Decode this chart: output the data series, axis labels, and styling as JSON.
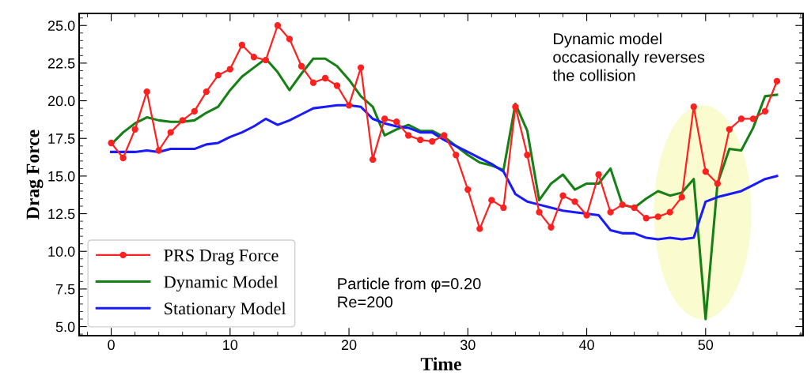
{
  "chart_data": {
    "type": "line",
    "xlabel": "Time",
    "ylabel": "Drag Force",
    "x": [
      0,
      1,
      2,
      3,
      4,
      5,
      6,
      7,
      8,
      9,
      10,
      11,
      12,
      13,
      14,
      15,
      16,
      17,
      18,
      19,
      20,
      21,
      22,
      23,
      24,
      25,
      26,
      27,
      28,
      29,
      30,
      31,
      32,
      33,
      34,
      35,
      36,
      37,
      38,
      39,
      40,
      41,
      42,
      43,
      44,
      45,
      46,
      47,
      48,
      49,
      50,
      51,
      52,
      53,
      54,
      55,
      56
    ],
    "series": [
      {
        "name": "PRS Drag Force",
        "color": "#ff2020",
        "marker": "circle",
        "values": [
          17.2,
          16.2,
          18.1,
          20.6,
          16.7,
          17.9,
          18.7,
          19.3,
          20.6,
          21.7,
          22.1,
          23.7,
          22.9,
          22.7,
          25.0,
          24.1,
          22.3,
          21.2,
          21.5,
          21.0,
          19.7,
          22.2,
          16.1,
          18.8,
          18.6,
          17.7,
          17.4,
          17.3,
          17.7,
          16.4,
          14.1,
          11.5,
          13.4,
          12.9,
          19.6,
          16.4,
          12.6,
          11.6,
          13.7,
          13.3,
          12.4,
          15.1,
          12.6,
          13.1,
          12.9,
          12.2,
          12.3,
          12.6,
          13.6,
          19.6,
          15.3,
          14.5,
          18.1,
          18.8,
          18.8,
          19.3,
          21.3
        ]
      },
      {
        "name": "Dynamic Model",
        "color": "#168016",
        "marker": "none",
        "values": [
          17.1,
          17.9,
          18.5,
          18.9,
          18.7,
          18.6,
          18.6,
          18.7,
          19.2,
          19.6,
          20.7,
          21.6,
          22.2,
          22.8,
          21.9,
          20.7,
          21.8,
          22.8,
          22.8,
          22.3,
          21.4,
          20.3,
          19.6,
          17.7,
          18.1,
          18.4,
          18.0,
          18.0,
          17.6,
          17.0,
          16.4,
          15.9,
          15.7,
          15.4,
          19.8,
          18.0,
          13.4,
          14.5,
          15.1,
          14.1,
          14.5,
          14.5,
          15.5,
          13.1,
          12.9,
          13.5,
          14.0,
          13.7,
          13.9,
          14.8,
          5.5,
          14.5,
          16.8,
          16.7,
          18.2,
          20.3,
          20.4
        ]
      },
      {
        "name": "Stationary Model",
        "color": "#1a1aff",
        "marker": "none",
        "values": [
          16.6,
          16.6,
          16.6,
          16.7,
          16.6,
          16.8,
          16.8,
          16.8,
          17.1,
          17.2,
          17.6,
          17.9,
          18.3,
          18.8,
          18.4,
          18.7,
          19.1,
          19.5,
          19.6,
          19.7,
          19.7,
          19.6,
          18.8,
          18.5,
          18.3,
          18.2,
          17.9,
          17.9,
          17.4,
          17.0,
          16.6,
          16.2,
          15.8,
          15.3,
          13.8,
          13.3,
          13.1,
          12.9,
          12.7,
          12.6,
          12.5,
          12.4,
          11.4,
          11.2,
          11.2,
          10.9,
          10.8,
          10.9,
          10.8,
          10.9,
          13.3,
          13.6,
          13.8,
          14.0,
          14.4,
          14.8,
          15.0
        ]
      }
    ],
    "xlim": [
      -2.7,
      58.2
    ],
    "ylim": [
      4.4,
      25.8
    ],
    "xticks": [
      0,
      10,
      20,
      30,
      40,
      50
    ],
    "yticks": [
      {
        "value": 5,
        "label": "5.0"
      },
      {
        "value": 7.5,
        "label": "7.5"
      },
      {
        "value": 10,
        "label": "10.0"
      },
      {
        "value": 12.5,
        "label": "12.5"
      },
      {
        "value": 15,
        "label": "15.0"
      },
      {
        "value": 17.5,
        "label": "17.5"
      },
      {
        "value": 20,
        "label": "20.0"
      },
      {
        "value": 22.5,
        "label": "22.5"
      },
      {
        "value": 25,
        "label": "25.0"
      }
    ],
    "grid": false,
    "legend": "bottom left",
    "line_style": "solid",
    "annotations": [
      "Dynamic model\noccasionally reverses\nthe collision",
      "Particle from φ=0.20\nRe=200"
    ]
  }
}
